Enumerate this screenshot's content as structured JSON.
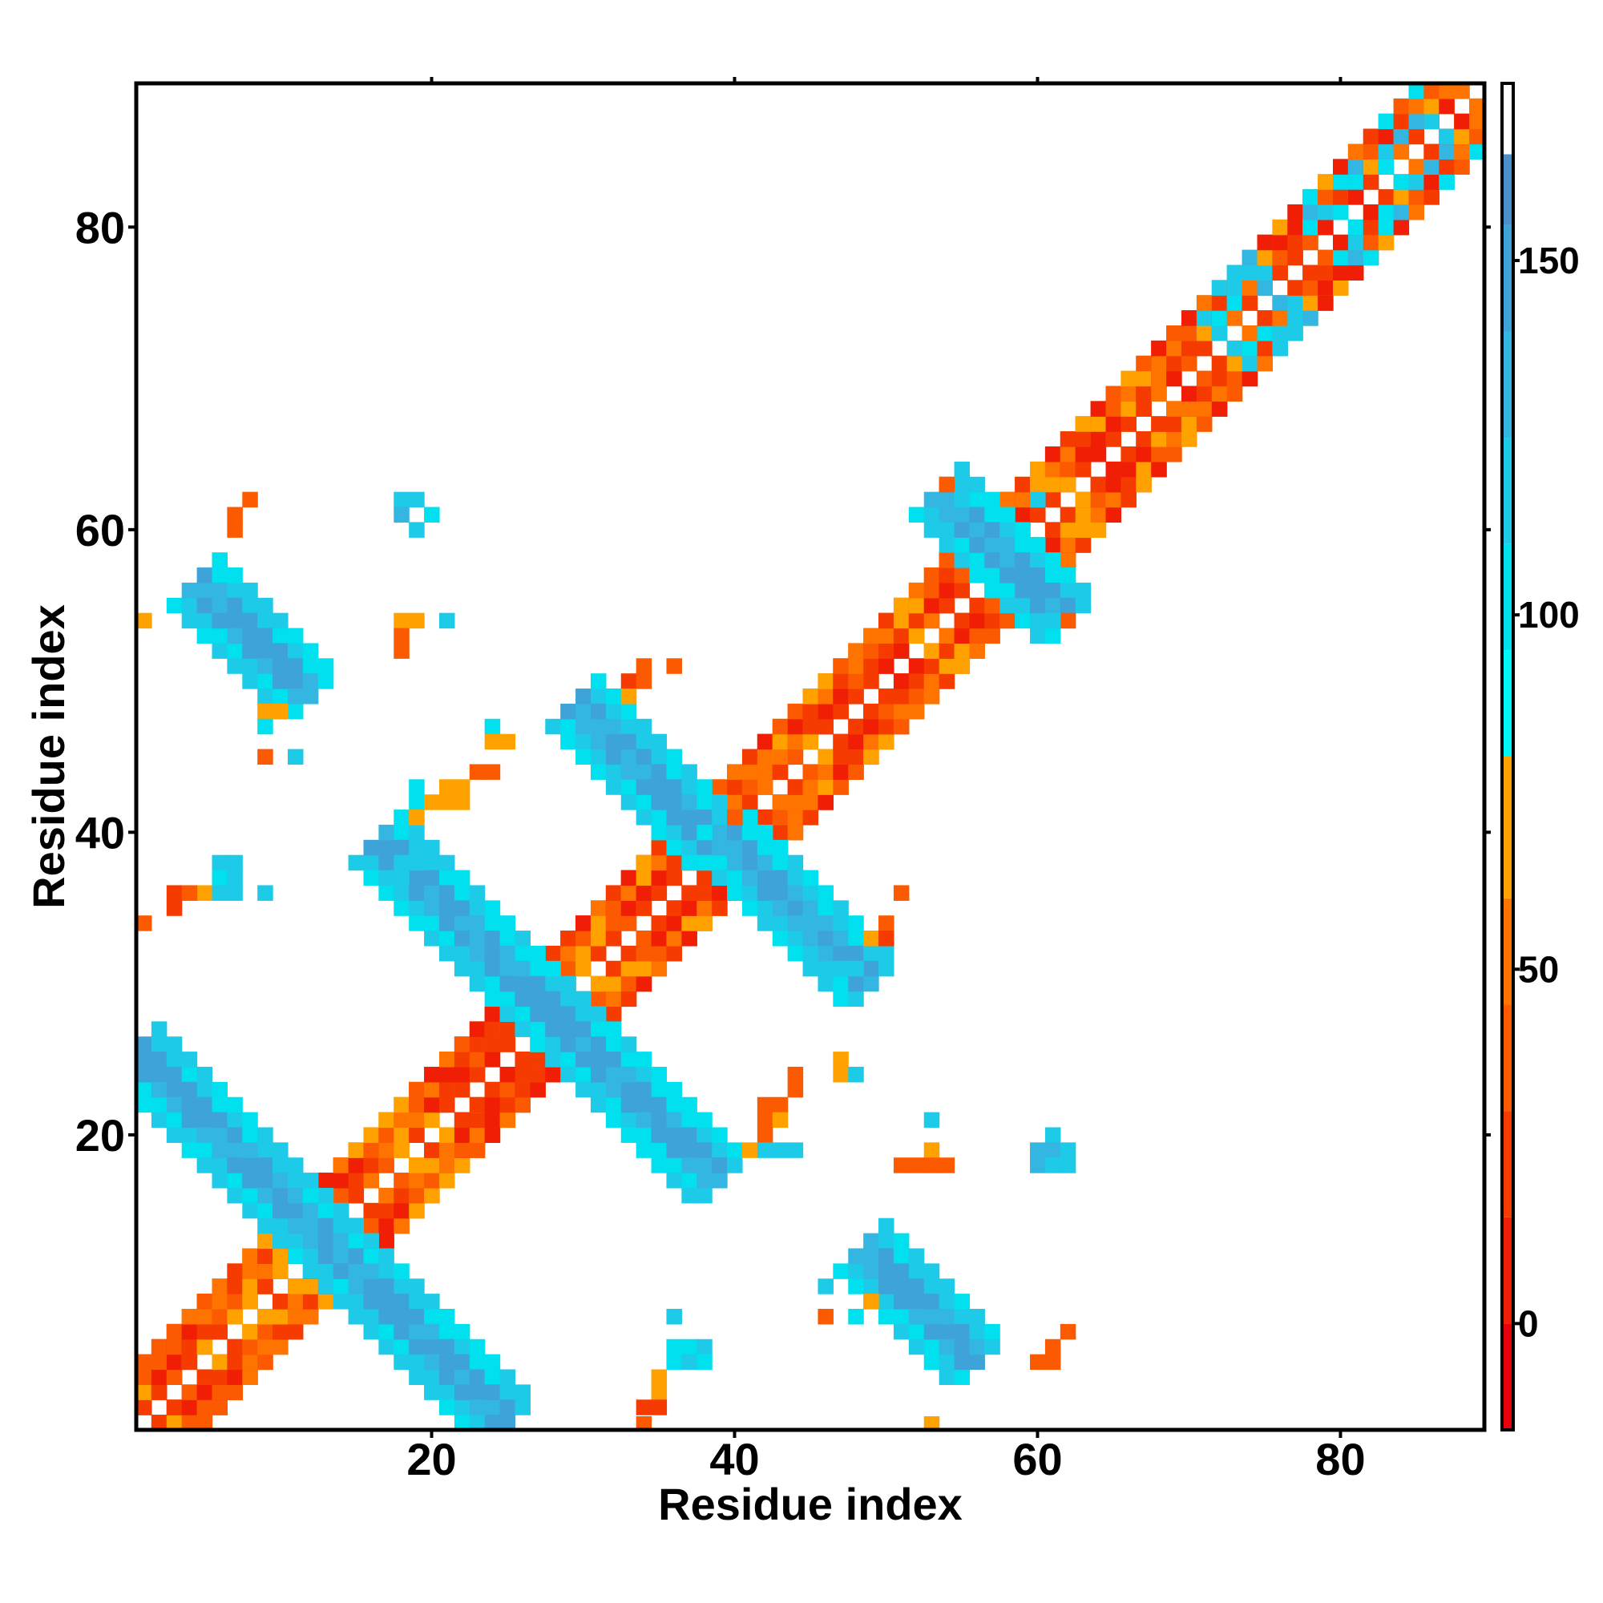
{
  "chart_data": {
    "type": "heatmap",
    "title": "",
    "xlabel": "Residue index",
    "ylabel": "Residue index",
    "xlim": [
      0.5,
      89.5
    ],
    "ylim": [
      0.5,
      89.5
    ],
    "xticks": [
      20,
      40,
      60,
      80
    ],
    "yticks": [
      20,
      40,
      60,
      80
    ],
    "grid": false,
    "colorbar": {
      "range": [
        -15,
        175
      ],
      "ticks": [
        0,
        50,
        100,
        150
      ],
      "bands": [
        {
          "from": -15,
          "to": 0,
          "color": "#e8000c"
        },
        {
          "from": 0,
          "to": 15,
          "color": "#ef1e04"
        },
        {
          "from": 15,
          "to": 30,
          "color": "#f53b00"
        },
        {
          "from": 30,
          "to": 45,
          "color": "#fb5a00"
        },
        {
          "from": 45,
          "to": 60,
          "color": "#ff7300"
        },
        {
          "from": 60,
          "to": 80,
          "color": "#ffa200"
        },
        {
          "from": 80,
          "to": 95,
          "color": "#00f7f7"
        },
        {
          "from": 95,
          "to": 110,
          "color": "#00e0ee"
        },
        {
          "from": 110,
          "to": 125,
          "color": "#1dcae8"
        },
        {
          "from": 125,
          "to": 140,
          "color": "#33b7e2"
        },
        {
          "from": 140,
          "to": 155,
          "color": "#3ea3d8"
        },
        {
          "from": 155,
          "to": 165,
          "color": "#4a90cb"
        },
        {
          "from": 165,
          "to": 175,
          "color": "#ffffff"
        }
      ]
    },
    "segments": [
      {
        "name": "diagonal-band",
        "x0": 1,
        "y0": 1,
        "x1": 89,
        "y1": 89,
        "width": 4,
        "value": 45
      },
      {
        "name": "antidiagonal-1",
        "x0": 1,
        "y0": 25,
        "x1": 25,
        "y1": 1,
        "width": 3,
        "value": 150
      },
      {
        "name": "antidiagonal-2",
        "x0": 17,
        "y0": 39,
        "x1": 39,
        "y1": 17,
        "width": 3,
        "value": 150
      },
      {
        "name": "antidiagonal-3",
        "x0": 30,
        "y0": 48,
        "x1": 49,
        "y1": 30,
        "width": 3,
        "value": 150
      },
      {
        "name": "antidiagonal-4",
        "x0": 54,
        "y0": 62,
        "x1": 62,
        "y1": 54,
        "width": 3,
        "value": 150
      },
      {
        "name": "crosspeak-1",
        "x0": 5,
        "y0": 56,
        "x1": 12,
        "y1": 49,
        "width": 3,
        "value": 150
      },
      {
        "name": "crosspeak-2",
        "x0": 49,
        "y0": 12,
        "x1": 56,
        "y1": 5,
        "width": 3,
        "value": 150
      }
    ],
    "points": [
      {
        "x": 7,
        "y": 61,
        "value": 40
      },
      {
        "x": 8,
        "y": 62,
        "value": 40
      },
      {
        "x": 7,
        "y": 60,
        "value": 40
      },
      {
        "x": 18,
        "y": 62,
        "value": 120
      },
      {
        "x": 19,
        "y": 62,
        "value": 120
      },
      {
        "x": 18,
        "y": 61,
        "value": 135
      },
      {
        "x": 19,
        "y": 60,
        "value": 120
      },
      {
        "x": 20,
        "y": 61,
        "value": 100
      },
      {
        "x": 1,
        "y": 54,
        "value": 60
      },
      {
        "x": 18,
        "y": 54,
        "value": 60
      },
      {
        "x": 19,
        "y": 54,
        "value": 60
      },
      {
        "x": 18,
        "y": 53,
        "value": 40
      },
      {
        "x": 18,
        "y": 52,
        "value": 40
      },
      {
        "x": 21,
        "y": 54,
        "value": 110
      },
      {
        "x": 9,
        "y": 48,
        "value": 60
      },
      {
        "x": 10,
        "y": 48,
        "value": 60
      },
      {
        "x": 9,
        "y": 47,
        "value": 95
      },
      {
        "x": 9,
        "y": 45,
        "value": 40
      },
      {
        "x": 11,
        "y": 45,
        "value": 110
      },
      {
        "x": 24,
        "y": 47,
        "value": 100
      },
      {
        "x": 24,
        "y": 46,
        "value": 60
      },
      {
        "x": 25,
        "y": 46,
        "value": 60
      },
      {
        "x": 23,
        "y": 44,
        "value": 30
      },
      {
        "x": 24,
        "y": 44,
        "value": 40
      },
      {
        "x": 19,
        "y": 43,
        "value": 100
      },
      {
        "x": 21,
        "y": 43,
        "value": 60
      },
      {
        "x": 22,
        "y": 43,
        "value": 60
      },
      {
        "x": 19,
        "y": 42,
        "value": 100
      },
      {
        "x": 20,
        "y": 42,
        "value": 60
      },
      {
        "x": 21,
        "y": 42,
        "value": 60
      },
      {
        "x": 22,
        "y": 42,
        "value": 60
      },
      {
        "x": 19,
        "y": 41,
        "value": 60
      },
      {
        "x": 6,
        "y": 38,
        "value": 110
      },
      {
        "x": 7,
        "y": 38,
        "value": 110
      },
      {
        "x": 6,
        "y": 37,
        "value": 100
      },
      {
        "x": 7,
        "y": 37,
        "value": 110
      },
      {
        "x": 5,
        "y": 36,
        "value": 60
      },
      {
        "x": 6,
        "y": 36,
        "value": 110
      },
      {
        "x": 7,
        "y": 36,
        "value": 110
      },
      {
        "x": 9,
        "y": 36,
        "value": 110
      },
      {
        "x": 3,
        "y": 36,
        "value": 20
      },
      {
        "x": 4,
        "y": 36,
        "value": 40
      },
      {
        "x": 3,
        "y": 35,
        "value": 20
      },
      {
        "x": 1,
        "y": 34,
        "value": 40
      },
      {
        "x": 18,
        "y": 38,
        "value": 110
      },
      {
        "x": 19,
        "y": 38,
        "value": 110
      },
      {
        "x": 17,
        "y": 37,
        "value": 110
      },
      {
        "x": 18,
        "y": 37,
        "value": 110
      },
      {
        "x": 34,
        "y": 51,
        "value": 30
      },
      {
        "x": 33,
        "y": 50,
        "value": 20
      },
      {
        "x": 34,
        "y": 50,
        "value": 30
      },
      {
        "x": 36,
        "y": 51,
        "value": 40
      },
      {
        "x": 32,
        "y": 49,
        "value": 100
      },
      {
        "x": 33,
        "y": 49,
        "value": 60
      },
      {
        "x": 41,
        "y": 40,
        "value": 100
      },
      {
        "x": 42,
        "y": 40,
        "value": 100
      },
      {
        "x": 40,
        "y": 41,
        "value": 40
      },
      {
        "x": 38,
        "y": 40,
        "value": 100
      },
      {
        "x": 51,
        "y": 36,
        "value": 40
      },
      {
        "x": 50,
        "y": 34,
        "value": 40
      },
      {
        "x": 49,
        "y": 33,
        "value": 60
      },
      {
        "x": 50,
        "y": 33,
        "value": 20
      },
      {
        "x": 47,
        "y": 31,
        "value": 110
      },
      {
        "x": 48,
        "y": 31,
        "value": 110
      },
      {
        "x": 54,
        "y": 63,
        "value": 40
      },
      {
        "x": 55,
        "y": 62,
        "value": 110
      },
      {
        "x": 60,
        "y": 62,
        "value": 110
      },
      {
        "x": 62,
        "y": 54,
        "value": 40
      },
      {
        "x": 61,
        "y": 54,
        "value": 110
      },
      {
        "x": 44,
        "y": 24,
        "value": 30
      },
      {
        "x": 44,
        "y": 23,
        "value": 30
      },
      {
        "x": 47,
        "y": 25,
        "value": 60
      },
      {
        "x": 47,
        "y": 24,
        "value": 60
      },
      {
        "x": 48,
        "y": 24,
        "value": 110
      },
      {
        "x": 42,
        "y": 22,
        "value": 40
      },
      {
        "x": 43,
        "y": 22,
        "value": 40
      },
      {
        "x": 42,
        "y": 21,
        "value": 40
      },
      {
        "x": 43,
        "y": 21,
        "value": 60
      },
      {
        "x": 42,
        "y": 20,
        "value": 40
      },
      {
        "x": 41,
        "y": 19,
        "value": 60
      },
      {
        "x": 42,
        "y": 19,
        "value": 110
      },
      {
        "x": 43,
        "y": 19,
        "value": 110
      },
      {
        "x": 44,
        "y": 19,
        "value": 110
      },
      {
        "x": 53,
        "y": 21,
        "value": 110
      },
      {
        "x": 53,
        "y": 19,
        "value": 60
      },
      {
        "x": 51,
        "y": 18,
        "value": 40
      },
      {
        "x": 52,
        "y": 18,
        "value": 40
      },
      {
        "x": 53,
        "y": 18,
        "value": 40
      },
      {
        "x": 54,
        "y": 18,
        "value": 40
      },
      {
        "x": 61,
        "y": 20,
        "value": 120
      },
      {
        "x": 60,
        "y": 19,
        "value": 135
      },
      {
        "x": 61,
        "y": 19,
        "value": 135
      },
      {
        "x": 62,
        "y": 19,
        "value": 120
      },
      {
        "x": 60,
        "y": 18,
        "value": 135
      },
      {
        "x": 61,
        "y": 18,
        "value": 120
      },
      {
        "x": 62,
        "y": 18,
        "value": 120
      },
      {
        "x": 36,
        "y": 8,
        "value": 110
      },
      {
        "x": 36,
        "y": 6,
        "value": 100
      },
      {
        "x": 37,
        "y": 6,
        "value": 100
      },
      {
        "x": 38,
        "y": 6,
        "value": 110
      },
      {
        "x": 36,
        "y": 5,
        "value": 100
      },
      {
        "x": 37,
        "y": 5,
        "value": 110
      },
      {
        "x": 38,
        "y": 5,
        "value": 100
      },
      {
        "x": 35,
        "y": 4,
        "value": 60
      },
      {
        "x": 35,
        "y": 3,
        "value": 60
      },
      {
        "x": 34,
        "y": 2,
        "value": 20
      },
      {
        "x": 35,
        "y": 2,
        "value": 20
      },
      {
        "x": 34,
        "y": 0.9,
        "value": 40
      },
      {
        "x": 46,
        "y": 10,
        "value": 110
      },
      {
        "x": 46,
        "y": 8,
        "value": 40
      },
      {
        "x": 48,
        "y": 8,
        "value": 100
      },
      {
        "x": 49,
        "y": 9,
        "value": 60
      },
      {
        "x": 61,
        "y": 5,
        "value": 40
      },
      {
        "x": 60,
        "y": 5,
        "value": 40
      },
      {
        "x": 61,
        "y": 6,
        "value": 40
      },
      {
        "x": 62,
        "y": 7,
        "value": 40
      },
      {
        "x": 53,
        "y": 0.9,
        "value": 60
      }
    ]
  }
}
